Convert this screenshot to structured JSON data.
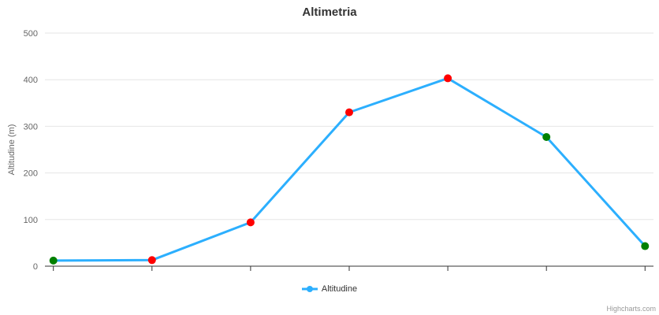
{
  "chart": {
    "title": "Altimetria",
    "yaxis_title": "Altitudine (m)",
    "legend": {
      "label": "Altitudine"
    },
    "credits": "Highcharts.com"
  },
  "chart_data": {
    "type": "line",
    "title": "Altimetria",
    "xlabel": "",
    "ylabel": "Altitudine (m)",
    "series": [
      {
        "name": "Altitudine",
        "color": "#2caffe",
        "values": [
          12,
          13,
          94,
          330,
          403,
          277,
          43
        ],
        "marker_colors": [
          "#008000",
          "#ff0000",
          "#ff0000",
          "#ff0000",
          "#ff0000",
          "#008000",
          "#008000"
        ]
      }
    ],
    "x_count": 7,
    "xticks_labels_visible": false,
    "ylim": [
      0,
      500
    ],
    "yticks": [
      0,
      100,
      200,
      300,
      400,
      500
    ],
    "grid": true,
    "legend_position": "bottom-center"
  },
  "colors": {
    "series_line": "#2caffe",
    "marker_red": "#ff0000",
    "marker_green": "#008000",
    "grid": "#e6e6e6",
    "axis": "#333333",
    "title_text": "#333333",
    "label_text": "#666666",
    "legend_text": "#333333",
    "credits_text": "#999999"
  }
}
